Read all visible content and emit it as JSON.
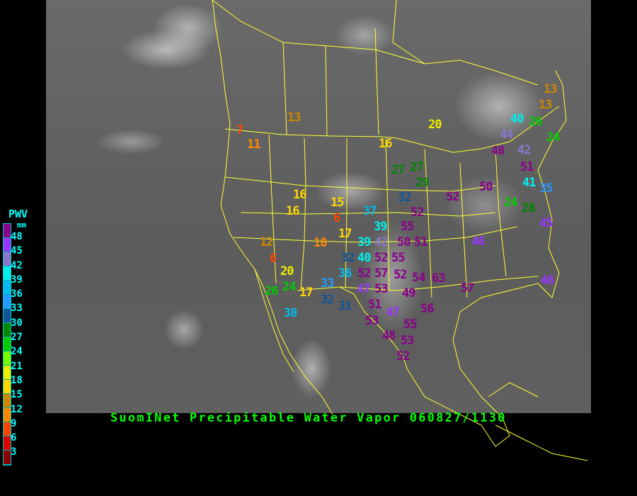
{
  "title": "SuomINet Precipitable Water Vapor 060827/1130",
  "legend": {
    "title": "PWV",
    "unit": "mm",
    "labels": [
      "48",
      "45",
      "42",
      "39",
      "36",
      "33",
      "30",
      "27",
      "24",
      "21",
      "18",
      "15",
      "12",
      "9",
      "6",
      "3"
    ],
    "colors": [
      "#8b008b",
      "#9933ff",
      "#8877cc",
      "#00eeee",
      "#00bbee",
      "#2299ff",
      "#115599",
      "#008800",
      "#00cc00",
      "#77ff00",
      "#eeee00",
      "#ffd700",
      "#cc8800",
      "#ff8800",
      "#ff4400",
      "#dd0000",
      "#880000"
    ]
  },
  "stations": [
    "13",
    "13",
    "40",
    "26",
    "24",
    "44",
    "42",
    "48",
    "51",
    "41",
    "35",
    "50",
    "24",
    "28",
    "45",
    "20",
    "16",
    "27",
    "27",
    "29",
    "32",
    "52",
    "52",
    "13",
    "7",
    "11",
    "16",
    "16",
    "15",
    "6",
    "17",
    "37",
    "39",
    "42",
    "55",
    "50",
    "51",
    "46",
    "12",
    "6",
    "10",
    "39",
    "32",
    "40",
    "52",
    "55",
    "52",
    "57",
    "53",
    "52",
    "54",
    "63",
    "57",
    "49",
    "56",
    "47",
    "51",
    "36",
    "33",
    "32",
    "31",
    "53",
    "47",
    "55",
    "48",
    "53",
    "52",
    "20",
    "24",
    "26",
    "17",
    "38",
    "46"
  ]
}
